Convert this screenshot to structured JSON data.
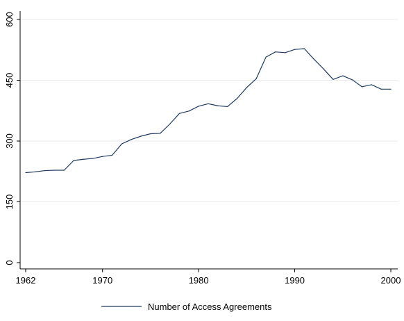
{
  "chart_data": {
    "type": "line",
    "title": "",
    "xlabel": "",
    "ylabel": "",
    "xlim": [
      1962,
      2000
    ],
    "ylim": [
      0,
      600
    ],
    "x_ticks": [
      1962,
      1970,
      1980,
      1990,
      2000
    ],
    "y_ticks": [
      0,
      150,
      300,
      450,
      600
    ],
    "grid": "horizontal",
    "legend_position": "bottom",
    "colors": {
      "series": "#1f3a5f",
      "grid": "#eaeaea",
      "axis": "#000000"
    },
    "x": [
      1962,
      1963,
      1964,
      1965,
      1966,
      1967,
      1968,
      1969,
      1970,
      1971,
      1972,
      1973,
      1974,
      1975,
      1976,
      1977,
      1978,
      1979,
      1980,
      1981,
      1982,
      1983,
      1984,
      1985,
      1986,
      1987,
      1988,
      1989,
      1990,
      1991,
      1992,
      1993,
      1994,
      1995,
      1996,
      1997,
      1998,
      1999,
      2000
    ],
    "series": [
      {
        "name": "Number of Access Agreements",
        "values": [
          222,
          224,
          227,
          228,
          228,
          252,
          255,
          257,
          262,
          265,
          293,
          304,
          312,
          318,
          319,
          342,
          368,
          374,
          386,
          392,
          387,
          385,
          405,
          432,
          454,
          507,
          520,
          518,
          526,
          528,
          502,
          478,
          452,
          461,
          451,
          434,
          439,
          428,
          428
        ]
      }
    ]
  }
}
